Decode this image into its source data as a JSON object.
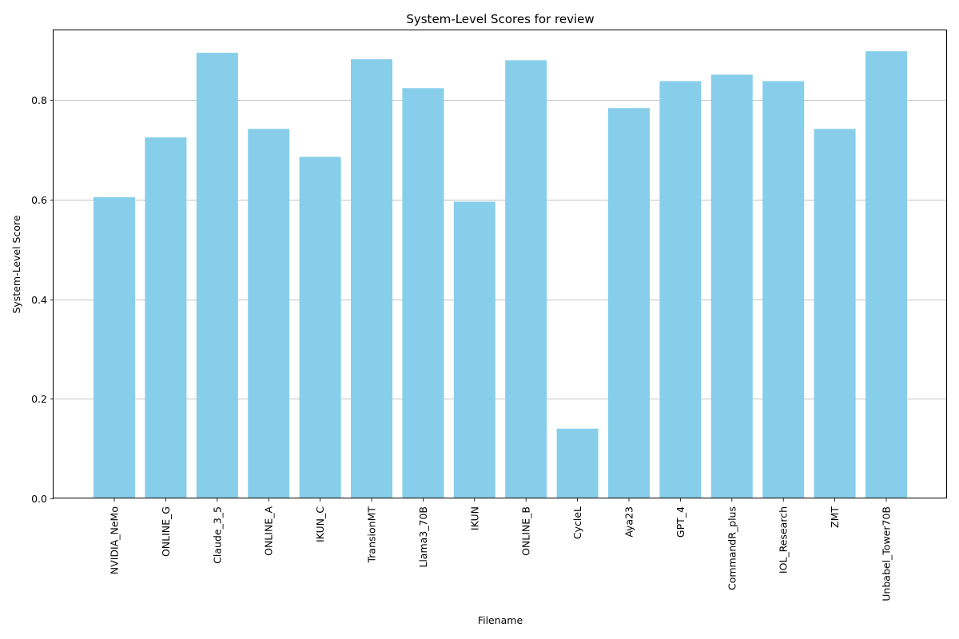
{
  "chart_data": {
    "type": "bar",
    "title": "System-Level Scores for review",
    "xlabel": "Filename",
    "ylabel": "System-Level Score",
    "categories": [
      "NVIDIA_NeMo",
      "ONLINE_G",
      "Claude_3_5",
      "ONLINE_A",
      "IKUN_C",
      "TransionMT",
      "Llama3_70B",
      "IKUN",
      "ONLINE_B",
      "CycleL",
      "Aya23",
      "GPT_4",
      "CommandR_plus",
      "IOL_Research",
      "ZMT",
      "Unbabel_Tower70B"
    ],
    "values": [
      0.605,
      0.725,
      0.895,
      0.742,
      0.686,
      0.882,
      0.824,
      0.596,
      0.88,
      0.14,
      0.784,
      0.838,
      0.851,
      0.838,
      0.742,
      0.898
    ],
    "ylim": [
      0,
      0.94
    ],
    "yticks": [
      "0.0",
      "0.2",
      "0.4",
      "0.6",
      "0.8"
    ],
    "grid": "y",
    "bar_color": "#87ceeb",
    "grid_color": "#b0b0b0"
  }
}
